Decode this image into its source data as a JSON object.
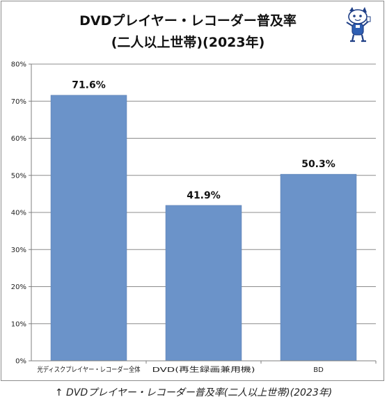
{
  "chart_data": {
    "type": "bar",
    "title_lines": [
      "DVDプレイヤー・レコーダー普及率",
      "(二人以上世帯)(2023年)"
    ],
    "categories": [
      "光ディスクプレイヤー・レコーダー全体",
      "DVD(再生録画兼用機)",
      "BD"
    ],
    "values": [
      71.6,
      41.9,
      50.3
    ],
    "data_labels": [
      "71.6%",
      "41.9%",
      "50.3%"
    ],
    "ylim": [
      0,
      80
    ],
    "yticks": [
      "0%",
      "10%",
      "20%",
      "30%",
      "40%",
      "50%",
      "60%",
      "70%",
      "80%"
    ],
    "grid": true,
    "legend": "none",
    "bar_color": "#6b93c9"
  },
  "caption": "↑ DVDプレイヤー・レコーダー普及率(二人以上世帯)(2023年)",
  "mascot": {
    "icon": "mascot-illustration-icon"
  }
}
